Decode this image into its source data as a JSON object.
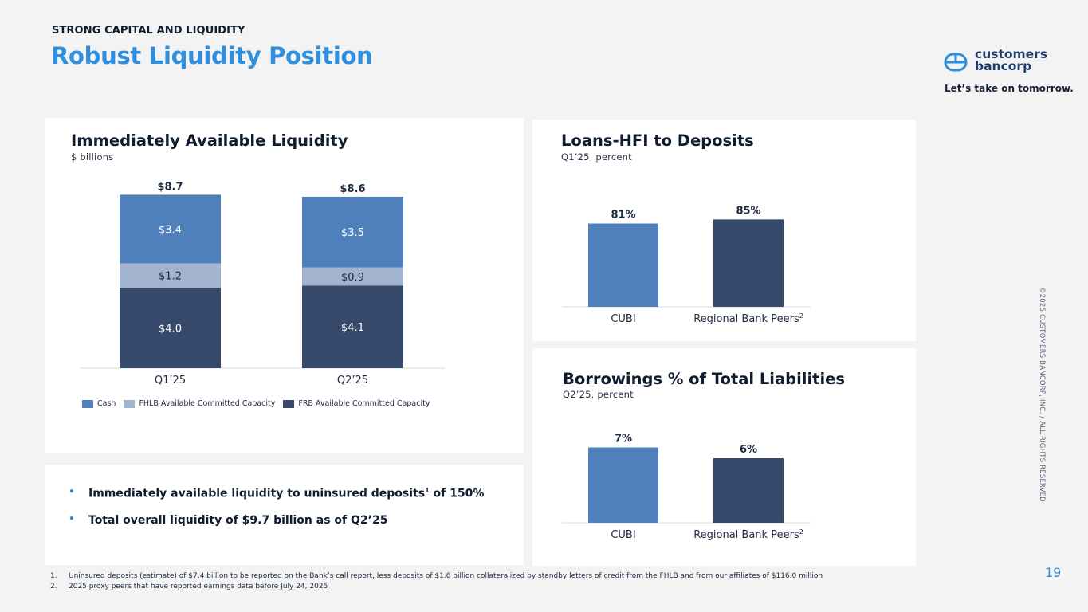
{
  "header": {
    "eyebrow": "STRONG CAPITAL AND LIQUIDITY",
    "title": "Robust Liquidity Position"
  },
  "brand": {
    "logo_line1": "customers",
    "logo_line2": "bancorp",
    "tagline": "Let’s take on tomorrow.",
    "copyright": "©2025 CUSTOMERS BANCORP, INC. / ALL RIGHTS RESERVED",
    "colors": {
      "accent": "#2f8fde",
      "navy": "#1f3d6b"
    }
  },
  "chart_data": [
    {
      "type": "bar",
      "stacked": true,
      "title": "Immediately Available Liquidity",
      "subtitle": "$ billions",
      "categories": [
        "Q1’25",
        "Q2’25"
      ],
      "totals": [
        8.7,
        8.6
      ],
      "total_labels": [
        "$8.7",
        "$8.6"
      ],
      "series": [
        {
          "name": "FRB Available Committed Capacity",
          "values": [
            4.0,
            4.1
          ],
          "labels": [
            "$4.0",
            "$4.1"
          ],
          "color": "#374a6c"
        },
        {
          "name": "FHLB Available Committed Capacity",
          "values": [
            1.2,
            0.9
          ],
          "labels": [
            "$1.2",
            "$0.9"
          ],
          "color": "#a2b3cf"
        },
        {
          "name": "Cash",
          "values": [
            3.4,
            3.5
          ],
          "labels": [
            "$3.4",
            "$3.5"
          ],
          "color": "#4f80bb"
        }
      ],
      "legend": [
        "Cash",
        "FHLB Available Committed Capacity",
        "FRB Available Committed Capacity"
      ],
      "legend_position": "bottom"
    },
    {
      "type": "bar",
      "title": "Loans-HFI to Deposits",
      "subtitle": "Q1’25, percent",
      "categories": [
        "CUBI",
        "Regional Bank Peers"
      ],
      "category_sup": [
        "",
        "2"
      ],
      "values": [
        81,
        85
      ],
      "labels": [
        "81%",
        "85%"
      ],
      "colors": [
        "#4f80bb",
        "#374a6c"
      ]
    },
    {
      "type": "bar",
      "title": "Borrowings % of Total Liabilities",
      "subtitle": "Q2’25, percent",
      "categories": [
        "CUBI",
        "Regional Bank Peers"
      ],
      "category_sup": [
        "",
        "2"
      ],
      "values": [
        7,
        6
      ],
      "labels": [
        "7%",
        "6%"
      ],
      "colors": [
        "#4f80bb",
        "#374a6c"
      ]
    }
  ],
  "bullets": [
    {
      "text": "Immediately available liquidity to uninsured deposits",
      "sup": "1",
      "tail": " of 150%"
    },
    {
      "text": "Total overall liquidity of $9.7 billion as of Q2’25",
      "sup": "",
      "tail": ""
    }
  ],
  "footnotes": [
    {
      "num": "1.",
      "text": "Uninsured deposits (estimate) of $7.4 billion to be reported on the Bank’s call report, less deposits of $1.6 billion collateralized by standby letters of credit from the FHLB and from our affiliates of $116.0 million"
    },
    {
      "num": "2.",
      "text": "2025 proxy peers that have reported earnings data before July 24, 2025"
    }
  ],
  "page_number": "19"
}
